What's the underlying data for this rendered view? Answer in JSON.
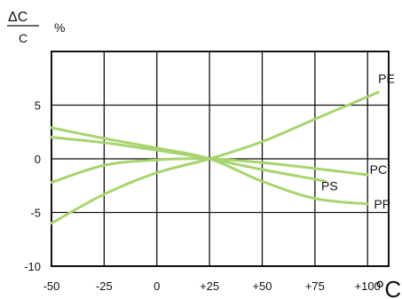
{
  "chart_data": {
    "type": "line",
    "ylabel_numerator": "ΔC",
    "ylabel_denominator": "C",
    "ylabel_unit": "%",
    "xlabel_unit": "°C",
    "xlim": [
      -50,
      110
    ],
    "ylim": [
      -10,
      10
    ],
    "grid": true,
    "legend": "inline",
    "line_color": "#a8d46f",
    "x_ticks": [
      {
        "value": -50,
        "label": "-50"
      },
      {
        "value": -25,
        "label": "-25"
      },
      {
        "value": 0,
        "label": "0"
      },
      {
        "value": 25,
        "label": "+25"
      },
      {
        "value": 50,
        "label": "+50"
      },
      {
        "value": 75,
        "label": "+75"
      },
      {
        "value": 100,
        "label": "+100"
      }
    ],
    "y_ticks": [
      {
        "value": 5,
        "label": "5"
      },
      {
        "value": 0,
        "label": "0"
      },
      {
        "value": -5,
        "label": "-5"
      },
      {
        "value": -10,
        "label": "-10"
      }
    ],
    "series": [
      {
        "name": "PE",
        "label_x": 105,
        "label_y": 7.5,
        "points": [
          [
            -50,
            -6
          ],
          [
            -25,
            -3.3
          ],
          [
            0,
            -1.3
          ],
          [
            25,
            0
          ],
          [
            50,
            1.6
          ],
          [
            75,
            3.7
          ],
          [
            105,
            6.2
          ]
        ]
      },
      {
        "name": "PC",
        "label_x": 101,
        "label_y": -1,
        "points": [
          [
            -50,
            -2.2
          ],
          [
            -25,
            -0.6
          ],
          [
            0,
            -0.1
          ],
          [
            25,
            0
          ],
          [
            50,
            -0.35
          ],
          [
            75,
            -0.9
          ],
          [
            100,
            -1.5
          ]
        ]
      },
      {
        "name": "PS",
        "label_x": 78,
        "label_y": -2.5,
        "points": [
          [
            -50,
            2
          ],
          [
            -25,
            1.5
          ],
          [
            0,
            0.8
          ],
          [
            25,
            0
          ],
          [
            50,
            -1
          ],
          [
            75,
            -1.9
          ],
          [
            80,
            -2.1
          ]
        ]
      },
      {
        "name": "PP",
        "label_x": 103,
        "label_y": -4.2,
        "points": [
          [
            -50,
            2.9
          ],
          [
            -25,
            1.9
          ],
          [
            0,
            1
          ],
          [
            25,
            0
          ],
          [
            50,
            -2.1
          ],
          [
            75,
            -3.7
          ],
          [
            100,
            -4.2
          ]
        ]
      }
    ]
  }
}
